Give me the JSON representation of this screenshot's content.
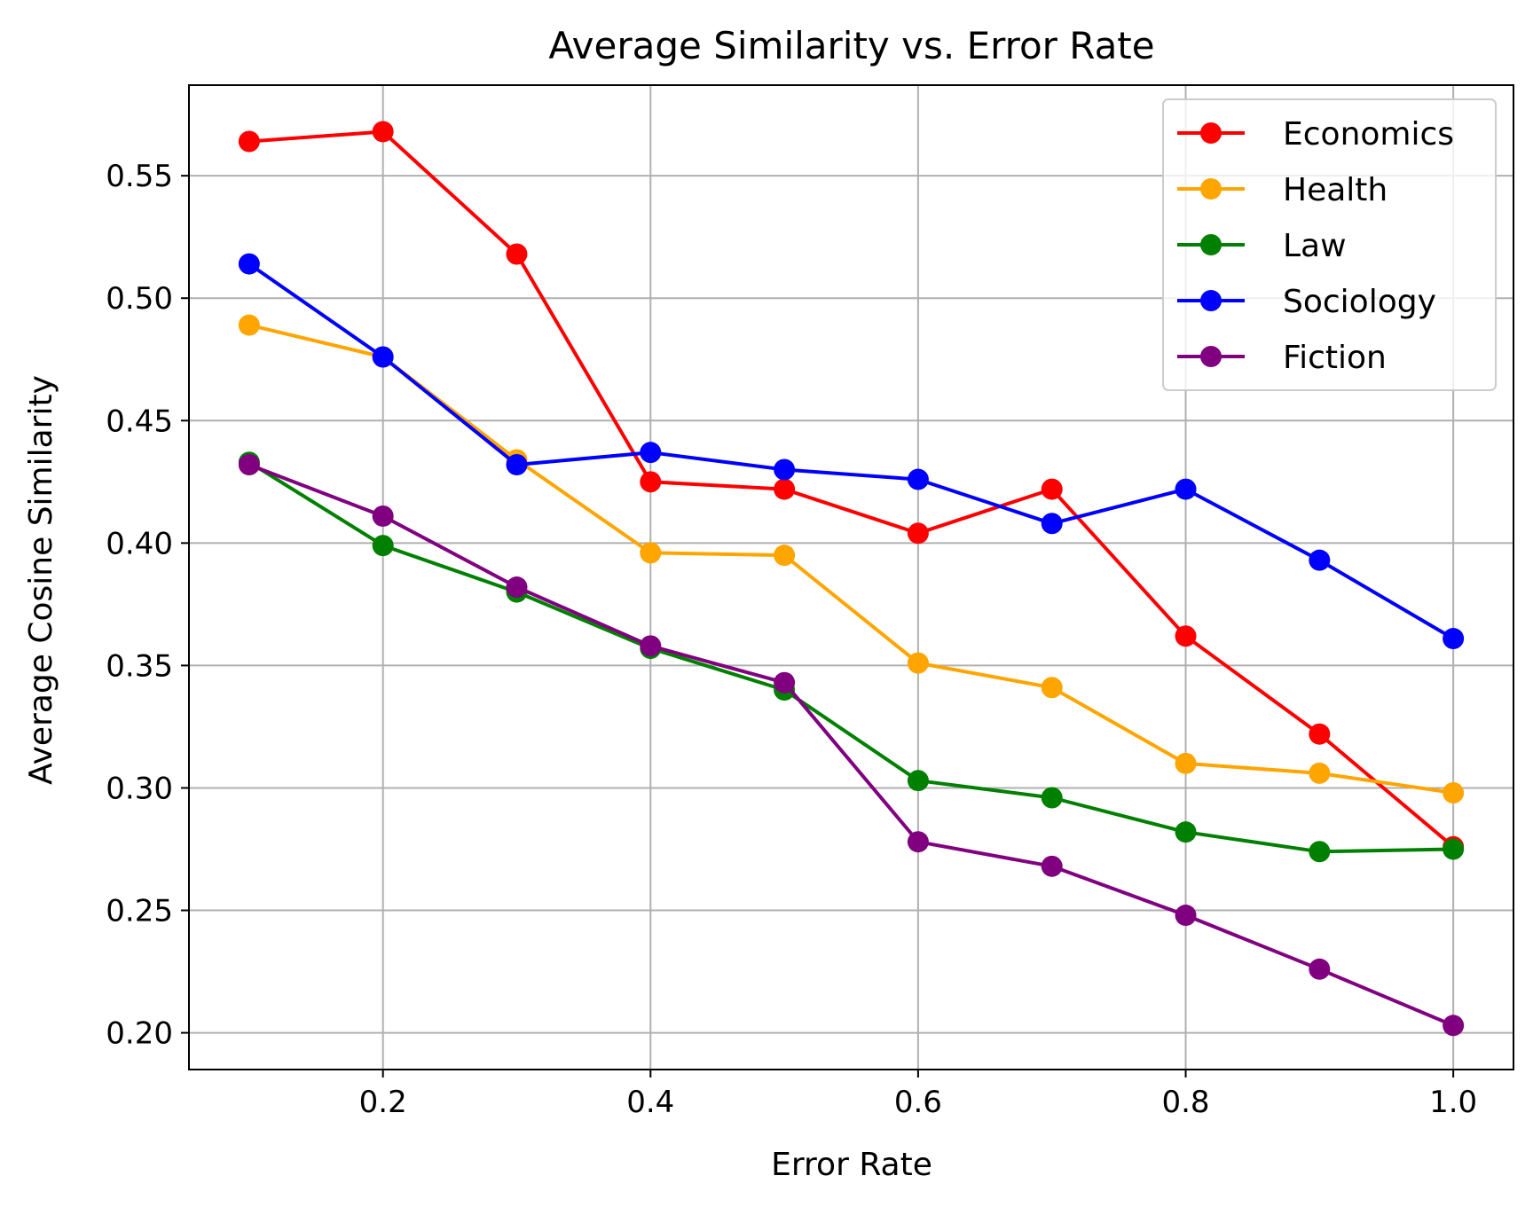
{
  "chart_data": {
    "type": "line",
    "title": "Average Similarity vs. Error Rate",
    "xlabel": "Error Rate",
    "ylabel": "Average Cosine Similarity",
    "x": [
      0.1,
      0.2,
      0.3,
      0.4,
      0.5,
      0.6,
      0.7,
      0.8,
      0.9,
      1.0
    ],
    "xlim": [
      0.055,
      1.045
    ],
    "ylim": [
      0.185,
      0.587
    ],
    "xticks": [
      0.2,
      0.4,
      0.6,
      0.8,
      1.0
    ],
    "xtick_labels": [
      "0.2",
      "0.4",
      "0.6",
      "0.8",
      "1.0"
    ],
    "yticks": [
      0.2,
      0.25,
      0.3,
      0.35,
      0.4,
      0.45,
      0.5,
      0.55
    ],
    "ytick_labels": [
      "0.20",
      "0.25",
      "0.30",
      "0.35",
      "0.40",
      "0.45",
      "0.50",
      "0.55"
    ],
    "grid": true,
    "legend_position": "top-right",
    "series": [
      {
        "name": "Economics",
        "color": "#ff0000",
        "values": [
          0.564,
          0.568,
          0.518,
          0.425,
          0.422,
          0.404,
          0.422,
          0.362,
          0.322,
          0.276
        ]
      },
      {
        "name": "Health",
        "color": "#ffa500",
        "values": [
          0.489,
          0.476,
          0.434,
          0.396,
          0.395,
          0.351,
          0.341,
          0.31,
          0.306,
          0.298
        ]
      },
      {
        "name": "Law",
        "color": "#008000",
        "values": [
          0.433,
          0.399,
          0.38,
          0.357,
          0.34,
          0.303,
          0.296,
          0.282,
          0.274,
          0.275
        ]
      },
      {
        "name": "Sociology",
        "color": "#0000ff",
        "values": [
          0.514,
          0.476,
          0.432,
          0.437,
          0.43,
          0.426,
          0.408,
          0.422,
          0.393,
          0.361
        ]
      },
      {
        "name": "Fiction",
        "color": "#800080",
        "values": [
          0.432,
          0.411,
          0.382,
          0.358,
          0.343,
          0.278,
          0.268,
          0.248,
          0.226,
          0.203
        ]
      }
    ]
  }
}
